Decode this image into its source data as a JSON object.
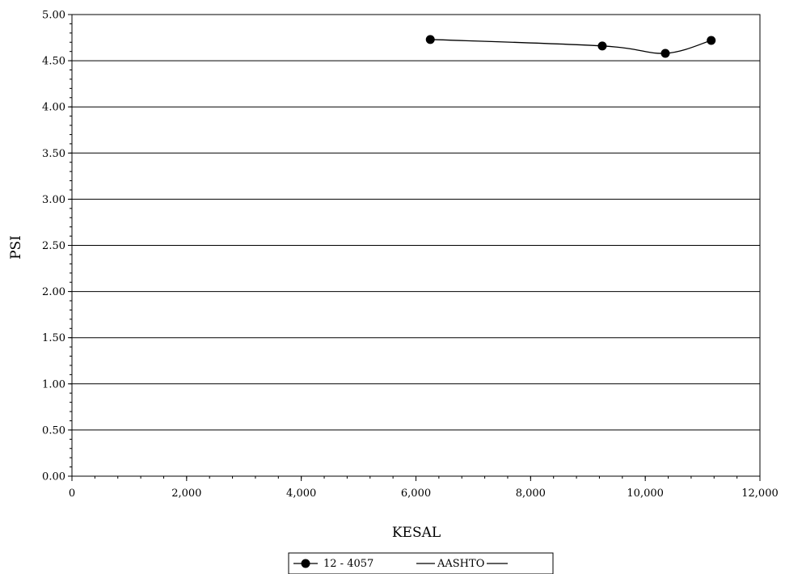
{
  "chart_data": {
    "type": "line",
    "xlabel": "KESAL",
    "ylabel": "PSI",
    "xlim": [
      0,
      12000
    ],
    "ylim": [
      0,
      5
    ],
    "x_ticks": [
      "0",
      "2,000",
      "4,000",
      "6,000",
      "8,000",
      "10,000",
      "12,000"
    ],
    "y_ticks": [
      "0.00",
      "0.50",
      "1.00",
      "1.50",
      "2.00",
      "2.50",
      "3.00",
      "3.50",
      "4.00",
      "4.50",
      "5.00"
    ],
    "grid": "horizontal",
    "legend_position": "bottom",
    "series": [
      {
        "name": "12 - 4057",
        "marker": "circle",
        "color": "#000000",
        "x": [
          6250,
          9250,
          10350,
          11150
        ],
        "y": [
          4.73,
          4.66,
          4.58,
          4.72
        ]
      },
      {
        "name": "AASHTO",
        "marker": "none",
        "color": "#000000",
        "x": [],
        "y": []
      }
    ]
  }
}
